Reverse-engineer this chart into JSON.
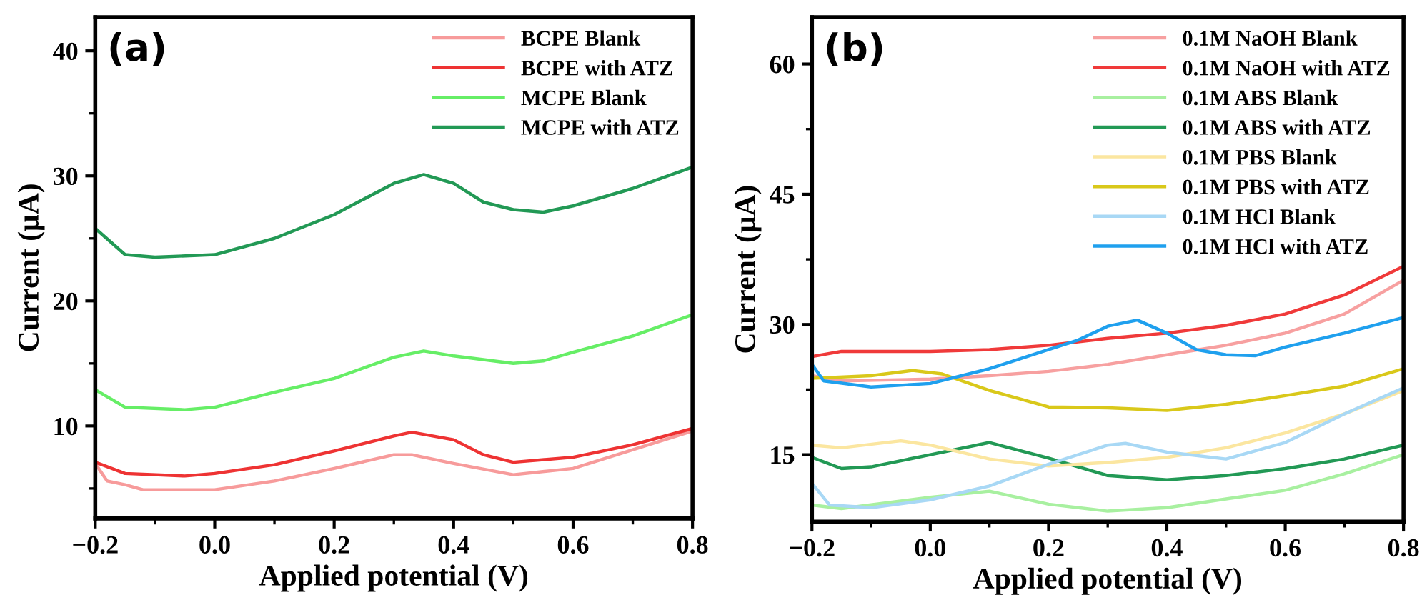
{
  "chart_data": [
    {
      "type": "line",
      "annotations": [
        "(a)"
      ],
      "xlabel": "Applied potential (V)",
      "ylabel": "Current (μA)",
      "xlim": [
        -0.2,
        0.8
      ],
      "ylim": [
        2.6,
        42.7
      ],
      "xticks": [
        {
          "value": -0.2,
          "label": "−0.2"
        },
        {
          "value": -0.1,
          "label": null
        },
        {
          "value": 0.0,
          "label": "0.0"
        },
        {
          "value": 0.1,
          "label": null
        },
        {
          "value": 0.2,
          "label": "0.2"
        },
        {
          "value": 0.3,
          "label": null
        },
        {
          "value": 0.4,
          "label": "0.4"
        },
        {
          "value": 0.5,
          "label": null
        },
        {
          "value": 0.6,
          "label": "0.6"
        },
        {
          "value": 0.7,
          "label": null
        },
        {
          "value": 0.8,
          "label": "0.8"
        }
      ],
      "yticks": [
        {
          "value": 5,
          "label": null
        },
        10,
        {
          "value": 15,
          "label": null
        },
        20,
        {
          "value": 25,
          "label": null
        },
        30,
        {
          "value": 35,
          "label": null
        },
        40
      ],
      "legend": "top right",
      "grid": false,
      "line_style": "solid",
      "marker": "none",
      "series": [
        {
          "name": "BCPE Blank",
          "color": "#f79b9b",
          "x": [
            -0.2,
            -0.18,
            -0.15,
            -0.12,
            0.0,
            0.1,
            0.2,
            0.3,
            0.33,
            0.4,
            0.5,
            0.6,
            0.7,
            0.8
          ],
          "values": [
            7.0,
            5.6,
            5.3,
            4.9,
            4.9,
            5.6,
            6.6,
            7.7,
            7.7,
            7.0,
            6.1,
            6.6,
            8.1,
            9.6
          ]
        },
        {
          "name": "BCPE with ATZ",
          "color": "#ee3333",
          "x": [
            -0.2,
            -0.15,
            -0.05,
            0.0,
            0.1,
            0.2,
            0.3,
            0.33,
            0.4,
            0.45,
            0.5,
            0.6,
            0.7,
            0.8
          ],
          "values": [
            7.1,
            6.2,
            6.0,
            6.2,
            6.9,
            8.0,
            9.2,
            9.5,
            8.9,
            7.7,
            7.1,
            7.5,
            8.5,
            9.8
          ]
        },
        {
          "name": "MCPE Blank",
          "color": "#66ee66",
          "x": [
            -0.2,
            -0.15,
            -0.05,
            0.0,
            0.1,
            0.2,
            0.3,
            0.35,
            0.4,
            0.5,
            0.55,
            0.6,
            0.7,
            0.8
          ],
          "values": [
            12.9,
            11.5,
            11.3,
            11.5,
            12.7,
            13.8,
            15.5,
            16.0,
            15.6,
            15.0,
            15.2,
            15.9,
            17.2,
            18.9
          ]
        },
        {
          "name": "MCPE with ATZ",
          "color": "#229955",
          "x": [
            -0.2,
            -0.15,
            -0.1,
            0.0,
            0.1,
            0.2,
            0.3,
            0.35,
            0.4,
            0.45,
            0.5,
            0.55,
            0.6,
            0.7,
            0.8
          ],
          "values": [
            25.8,
            23.7,
            23.5,
            23.7,
            25.0,
            26.9,
            29.4,
            30.1,
            29.4,
            27.9,
            27.3,
            27.1,
            27.6,
            29.0,
            30.7
          ]
        }
      ]
    },
    {
      "type": "line",
      "annotations": [
        "(b)"
      ],
      "xlabel": "Applied potential (V)",
      "ylabel": "Current (μA)",
      "xlim": [
        -0.2,
        0.8
      ],
      "ylim": [
        7.3,
        65.4
      ],
      "xticks": [
        {
          "value": -0.2,
          "label": "−0.2"
        },
        {
          "value": -0.1,
          "label": null
        },
        {
          "value": 0.0,
          "label": "0.0"
        },
        {
          "value": 0.1,
          "label": null
        },
        {
          "value": 0.2,
          "label": "0.2"
        },
        {
          "value": 0.3,
          "label": null
        },
        {
          "value": 0.4,
          "label": "0.4"
        },
        {
          "value": 0.5,
          "label": null
        },
        {
          "value": 0.6,
          "label": "0.6"
        },
        {
          "value": 0.7,
          "label": null
        },
        {
          "value": 0.8,
          "label": "0.8"
        }
      ],
      "yticks": [
        15,
        {
          "value": 22.5,
          "label": null
        },
        30,
        {
          "value": 37.5,
          "label": null
        },
        45,
        {
          "value": 52.5,
          "label": null
        },
        60
      ],
      "legend": "top right",
      "grid": false,
      "line_style": "solid",
      "marker": "none",
      "series": [
        {
          "name": "0.1M NaOH Blank",
          "color": "#f7a0a0",
          "x": [
            -0.2,
            -0.15,
            0.0,
            0.1,
            0.2,
            0.3,
            0.4,
            0.5,
            0.6,
            0.7,
            0.8
          ],
          "values": [
            24.1,
            23.5,
            23.7,
            24.1,
            24.6,
            25.4,
            26.5,
            27.6,
            29.0,
            31.2,
            35.1
          ]
        },
        {
          "name": "0.1M NaOH with ATZ",
          "color": "#f03a3a",
          "x": [
            -0.2,
            -0.15,
            0.0,
            0.1,
            0.2,
            0.3,
            0.4,
            0.5,
            0.6,
            0.7,
            0.8
          ],
          "values": [
            26.3,
            26.9,
            26.9,
            27.1,
            27.6,
            28.4,
            29.0,
            29.9,
            31.2,
            33.4,
            36.7
          ]
        },
        {
          "name": "0.1M ABS Blank",
          "color": "#a8f0a0",
          "x": [
            -0.2,
            -0.15,
            0.0,
            0.1,
            0.2,
            0.3,
            0.4,
            0.5,
            0.6,
            0.7,
            0.8
          ],
          "values": [
            9.2,
            8.8,
            10.1,
            10.8,
            9.3,
            8.5,
            8.9,
            9.9,
            10.9,
            12.8,
            15.0
          ]
        },
        {
          "name": "0.1M ABS with ATZ",
          "color": "#229955",
          "x": [
            -0.2,
            -0.15,
            -0.1,
            0.0,
            0.1,
            0.2,
            0.3,
            0.4,
            0.5,
            0.6,
            0.7,
            0.8
          ],
          "values": [
            14.7,
            13.4,
            13.6,
            15.0,
            16.4,
            14.6,
            12.6,
            12.1,
            12.6,
            13.4,
            14.5,
            16.1
          ]
        },
        {
          "name": "0.1M PBS Blank",
          "color": "#fbe6a0",
          "x": [
            -0.2,
            -0.15,
            -0.05,
            0.0,
            0.1,
            0.2,
            0.3,
            0.4,
            0.5,
            0.6,
            0.7,
            0.8
          ],
          "values": [
            16.1,
            15.8,
            16.6,
            16.1,
            14.5,
            13.7,
            14.1,
            14.7,
            15.8,
            17.5,
            19.7,
            22.4
          ]
        },
        {
          "name": "0.1M PBS with ATZ",
          "color": "#d9c81a",
          "x": [
            -0.2,
            -0.1,
            -0.03,
            0.02,
            0.1,
            0.2,
            0.3,
            0.4,
            0.5,
            0.6,
            0.7,
            0.8
          ],
          "values": [
            23.8,
            24.1,
            24.7,
            24.3,
            22.4,
            20.5,
            20.4,
            20.1,
            20.8,
            21.8,
            22.9,
            24.9
          ]
        },
        {
          "name": "0.1M HCl Blank",
          "color": "#a8d8f5",
          "x": [
            -0.2,
            -0.17,
            -0.1,
            0.0,
            0.1,
            0.2,
            0.3,
            0.33,
            0.4,
            0.5,
            0.6,
            0.7,
            0.8
          ],
          "values": [
            11.7,
            9.2,
            8.9,
            9.8,
            11.4,
            13.9,
            16.1,
            16.3,
            15.3,
            14.5,
            16.4,
            19.7,
            22.7
          ]
        },
        {
          "name": "0.1M HCl with ATZ",
          "color": "#1fa0ee",
          "x": [
            -0.2,
            -0.18,
            -0.1,
            0.0,
            0.1,
            0.2,
            0.25,
            0.3,
            0.35,
            0.4,
            0.45,
            0.5,
            0.55,
            0.6,
            0.7,
            0.8
          ],
          "values": [
            25.4,
            23.5,
            22.8,
            23.2,
            24.9,
            27.1,
            28.2,
            29.8,
            30.5,
            29.0,
            27.1,
            26.5,
            26.4,
            27.4,
            29.0,
            30.8
          ]
        }
      ]
    }
  ]
}
